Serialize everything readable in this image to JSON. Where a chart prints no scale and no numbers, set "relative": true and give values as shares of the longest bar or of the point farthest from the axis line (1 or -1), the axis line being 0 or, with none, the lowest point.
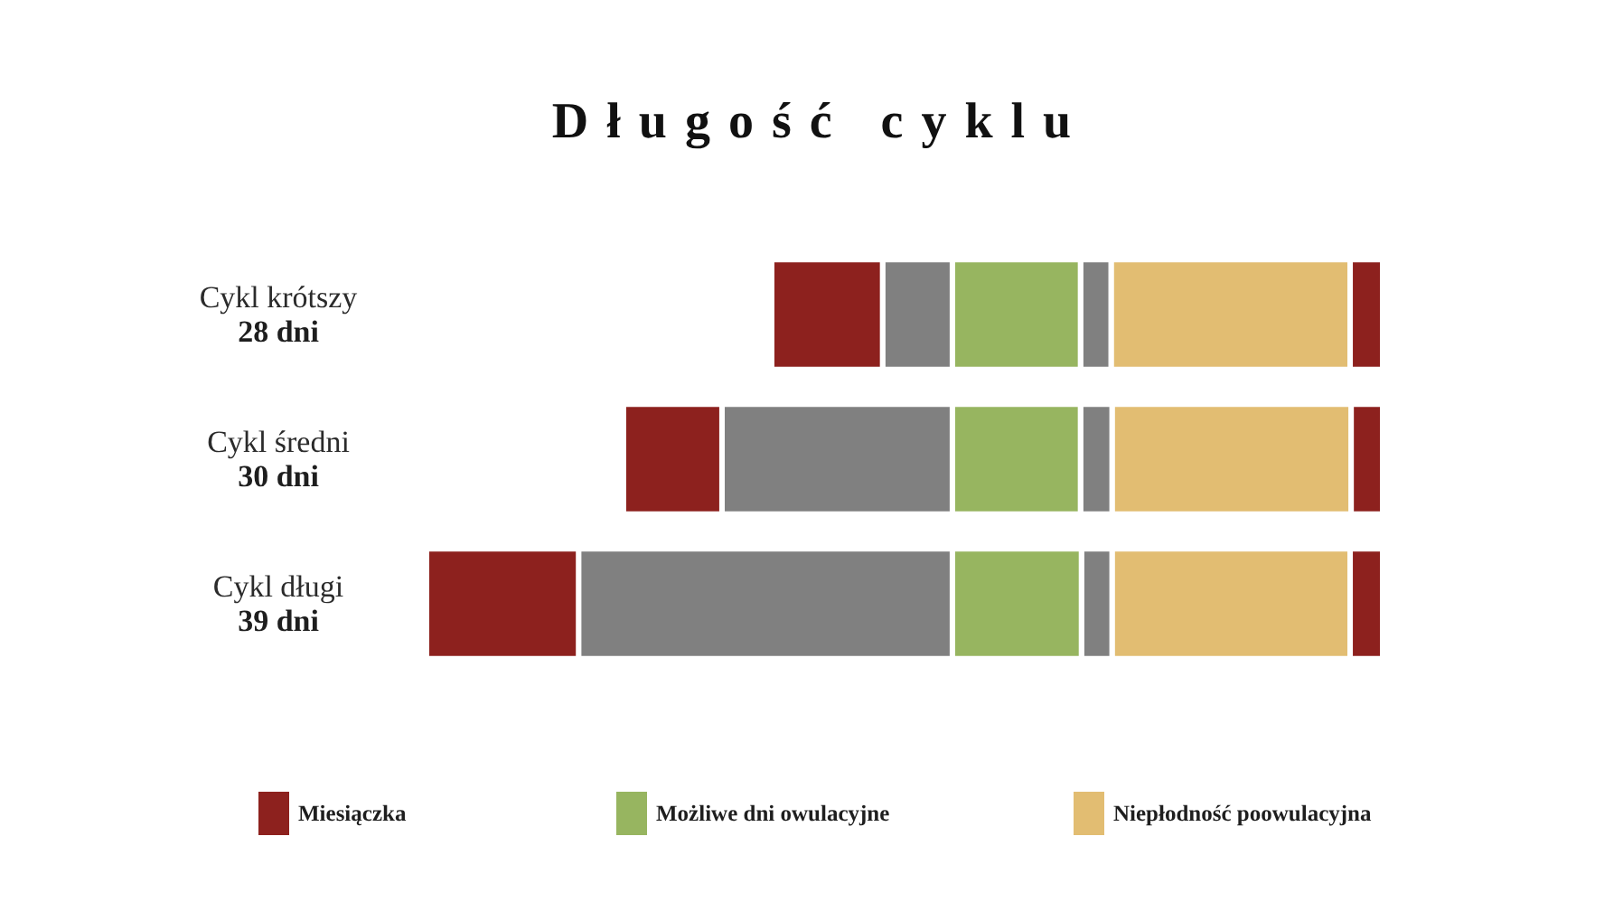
{
  "chart_data": {
    "type": "bar",
    "title": "Długość cyklu",
    "orientation": "horizontal",
    "stacked": true,
    "relative": true,
    "xlim": [
      1,
      0
    ],
    "categories": [
      "Cykl krótszy\n28 dni",
      "Cykl średni\n30 dni",
      "Cykl długi\n39 dni"
    ],
    "series": [
      {
        "color": "#8d211e",
        "values": [
          0.034,
          0.033,
          0.034
        ]
      },
      {
        "name": "Niepłodność poowulacyjna",
        "color": "#e2bd72",
        "values": [
          0.25,
          0.25,
          0.249
        ]
      },
      {
        "color": "#808080",
        "values": [
          0.032,
          0.033,
          0.032
        ]
      },
      {
        "name": "Możliwe dni owulacyjne",
        "color": "#97b560",
        "values": [
          0.134,
          0.134,
          0.135
        ]
      },
      {
        "color": "#808080",
        "values": [
          0.073,
          0.241,
          0.391
        ]
      },
      {
        "name": "Miesiączka",
        "color": "#8d211e",
        "values": [
          0.116,
          0.103,
          0.159
        ]
      }
    ],
    "legend": "bottom"
  }
}
